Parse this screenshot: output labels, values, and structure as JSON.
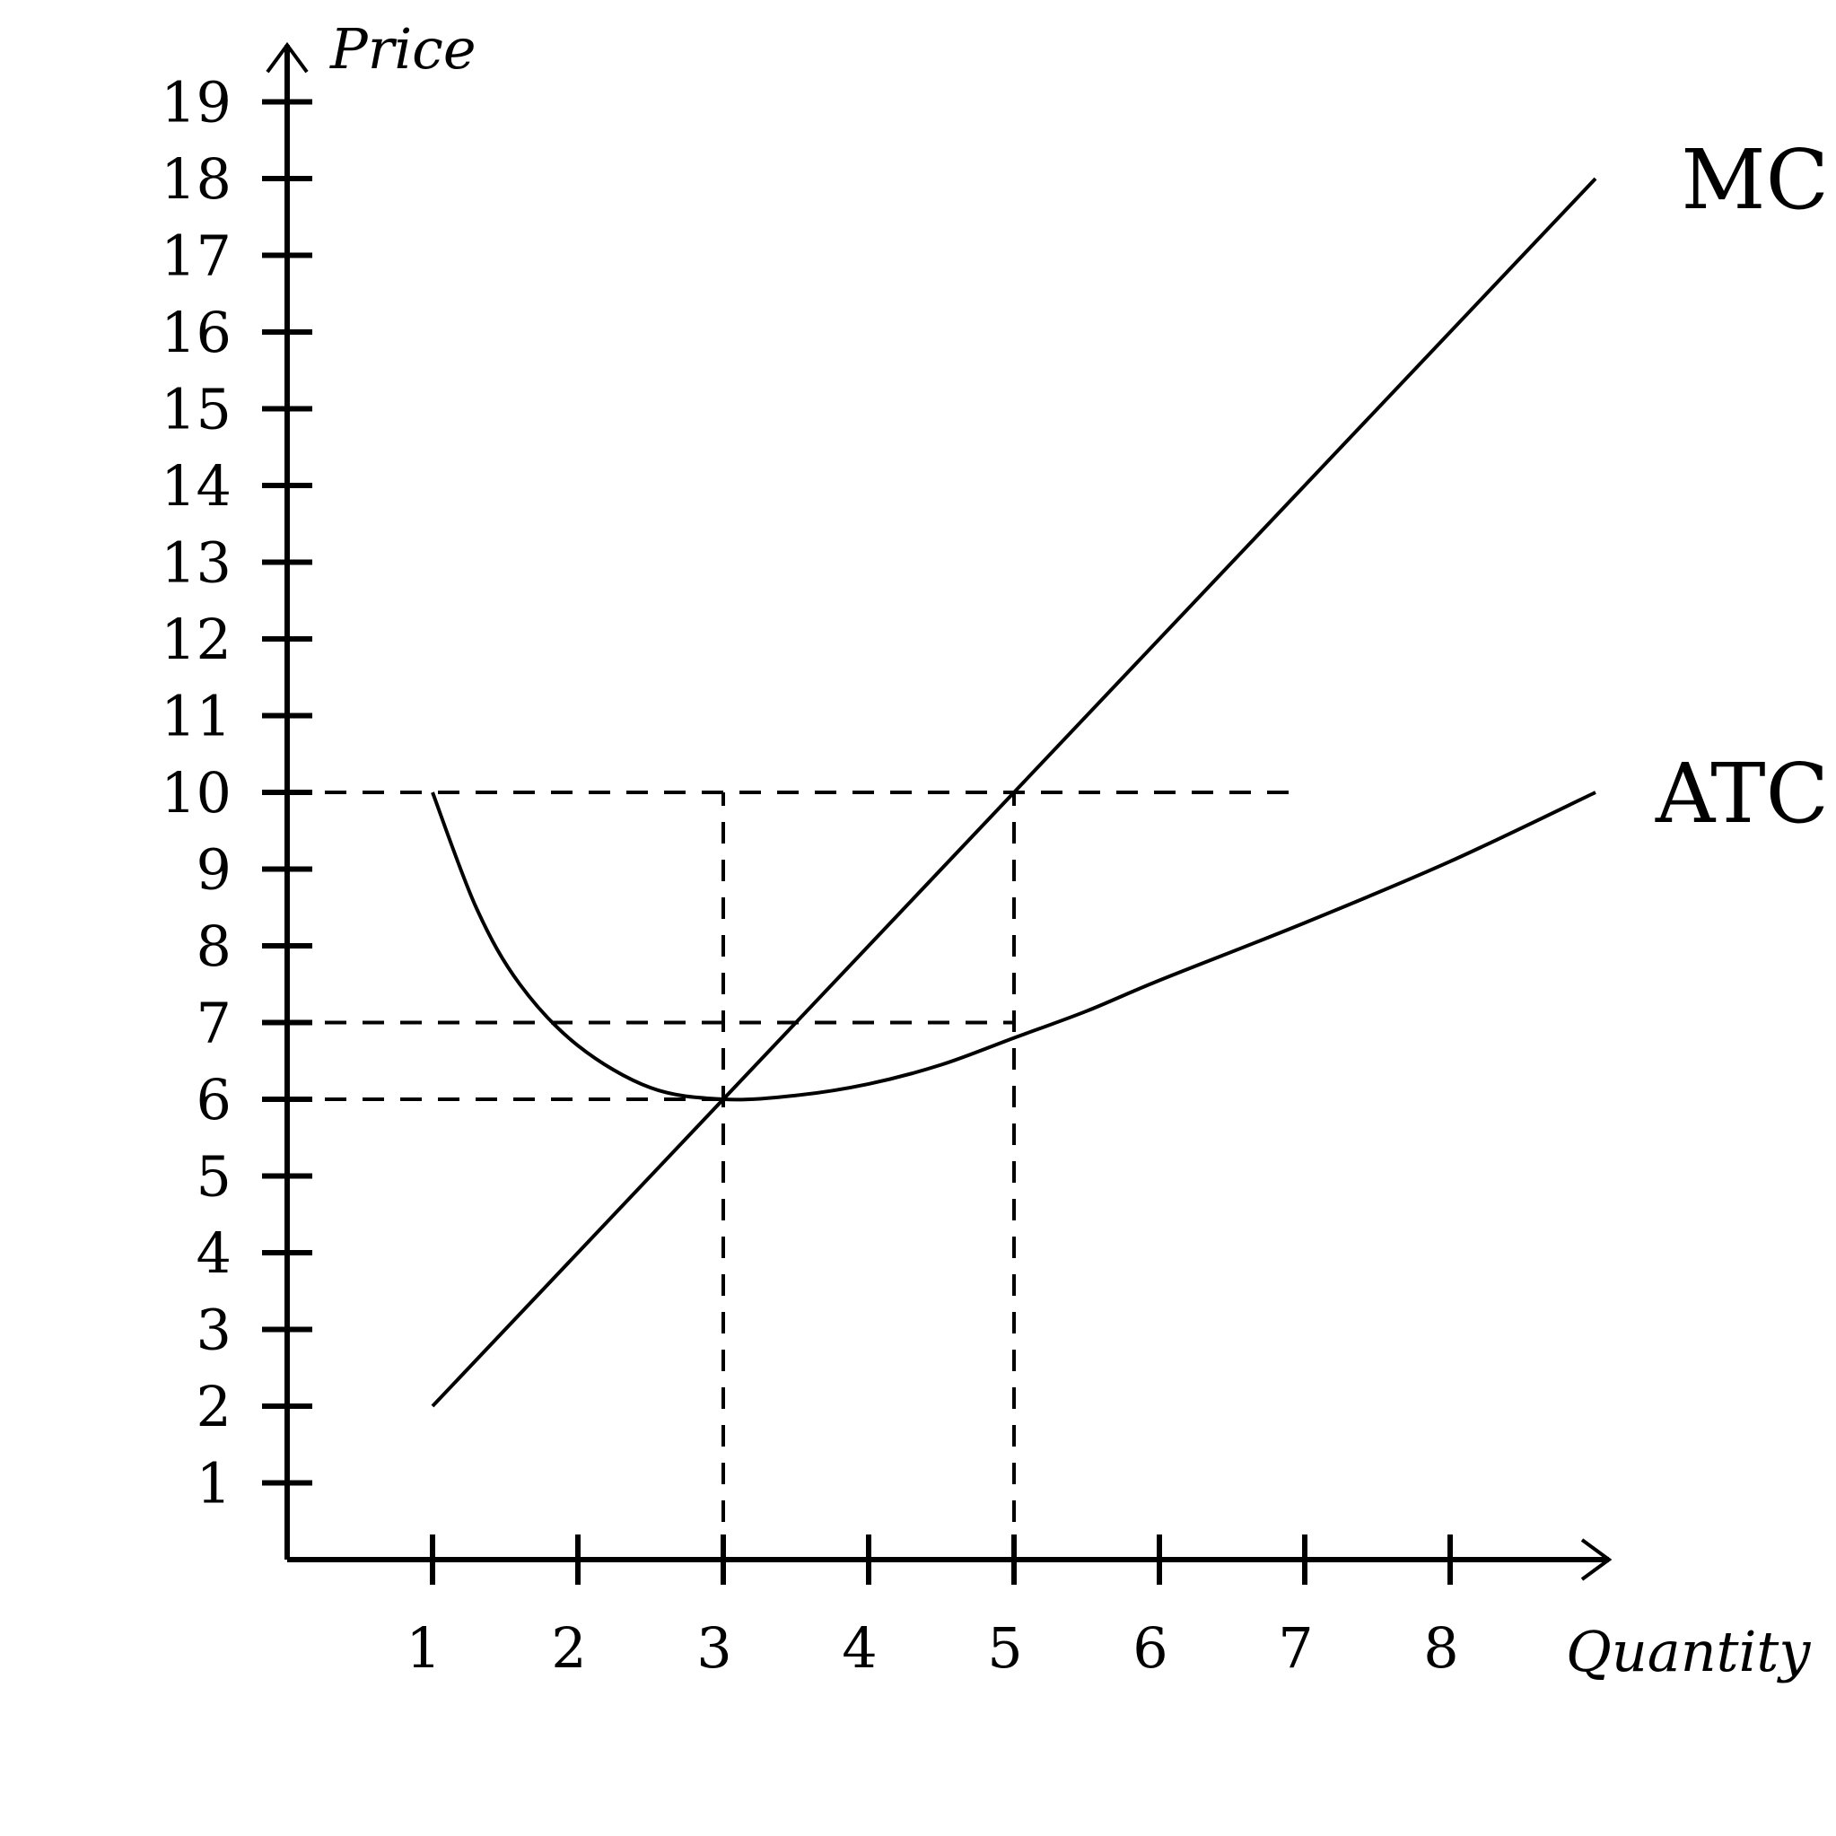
{
  "chart_data": {
    "type": "line",
    "title": "",
    "xlabel": "Quantity",
    "ylabel": "Price",
    "xlim": [
      0,
      9
    ],
    "ylim": [
      0,
      19.6
    ],
    "x_ticks": [
      1,
      2,
      3,
      4,
      5,
      6,
      7,
      8
    ],
    "x_tick_labels": [
      "1",
      "2",
      "3",
      "4",
      "5",
      "6",
      "7",
      "8"
    ],
    "y_ticks": [
      1,
      2,
      3,
      4,
      5,
      6,
      7,
      8,
      9,
      10,
      11,
      12,
      13,
      14,
      15,
      16,
      17,
      18,
      19
    ],
    "y_tick_labels": [
      "1",
      "2",
      "3",
      "4",
      "5",
      "6",
      "7",
      "8",
      "9",
      "10",
      "11",
      "12",
      "13",
      "14",
      "15",
      "16",
      "17",
      "18",
      "19"
    ],
    "grid": false,
    "series": [
      {
        "name": "MC",
        "curve": "linear",
        "x": [
          1,
          9
        ],
        "y": [
          2,
          18
        ]
      },
      {
        "name": "ATC",
        "curve": "smooth",
        "x": [
          1,
          1.3,
          1.6,
          2,
          2.5,
          3,
          3.5,
          4,
          4.5,
          5,
          5.5,
          6,
          7,
          8,
          9
        ],
        "y": [
          10,
          8.5,
          7.5,
          6.7,
          6.15,
          6.0,
          6.05,
          6.2,
          6.45,
          6.8,
          7.15,
          7.55,
          8.3,
          9.1,
          10
        ]
      }
    ],
    "reference_lines": [
      {
        "orientation": "horizontal",
        "y": 10,
        "x_from": 0,
        "x_to": 7
      },
      {
        "orientation": "horizontal",
        "y": 7,
        "x_from": 0,
        "x_to": 5
      },
      {
        "orientation": "horizontal",
        "y": 6,
        "x_from": 0,
        "x_to": 3
      },
      {
        "orientation": "vertical",
        "x": 3,
        "y_from": 0,
        "y_to": 10
      },
      {
        "orientation": "vertical",
        "x": 5,
        "y_from": 0,
        "y_to": 10
      }
    ]
  }
}
